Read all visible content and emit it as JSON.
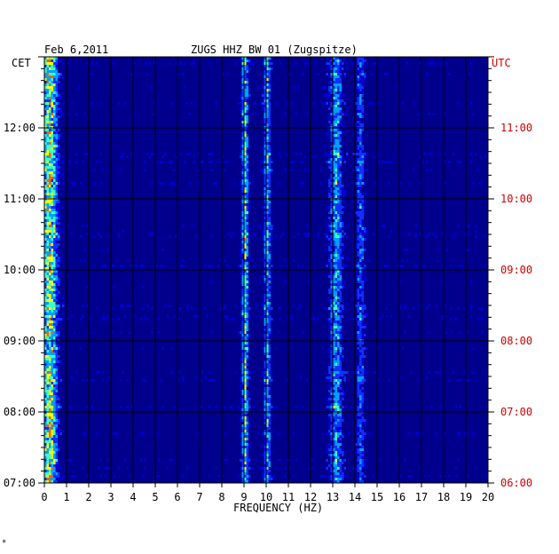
{
  "header": {
    "date": "Feb 6,2011",
    "station": "ZUGS HHZ BW 01 (Zugspitze)",
    "left_zone": "CET",
    "right_zone": "UTC"
  },
  "footer": {
    "mark": "*"
  },
  "chart_data": {
    "type": "heatmap",
    "title": "ZUGS HHZ BW 01 (Zugspitze)",
    "date": "Feb 6,2011",
    "xlabel": "FREQUENCY (HZ)",
    "xlim": [
      0,
      20
    ],
    "x_ticks": [
      "0",
      "1",
      "2",
      "3",
      "4",
      "5",
      "6",
      "7",
      "8",
      "9",
      "10",
      "11",
      "12",
      "13",
      "14",
      "15",
      "16",
      "17",
      "18",
      "19",
      "20"
    ],
    "y_left_label": "CET",
    "y_right_label": "UTC",
    "y_left_ticks": [
      "07:00",
      "08:00",
      "09:00",
      "10:00",
      "11:00",
      "12:00"
    ],
    "y_right_ticks": [
      "06:00",
      "07:00",
      "08:00",
      "09:00",
      "10:00",
      "11:00"
    ],
    "time_range_cet": [
      "07:00",
      "13:00"
    ],
    "colormap": [
      "#00008c",
      "#0000d0",
      "#1030ff",
      "#00a0ff",
      "#40ffc0",
      "#ffff00",
      "#ff6000"
    ],
    "background_color": "#00008c",
    "grid": true,
    "bands_hz": [
      {
        "f": 0.2,
        "strength": 0.85,
        "width": 0.35
      },
      {
        "f": 9.0,
        "strength": 0.7,
        "width": 0.15
      },
      {
        "f": 10.0,
        "strength": 0.6,
        "width": 0.15
      },
      {
        "f": 13.1,
        "strength": 0.55,
        "width": 0.3
      },
      {
        "f": 14.2,
        "strength": 0.4,
        "width": 0.2
      }
    ]
  }
}
